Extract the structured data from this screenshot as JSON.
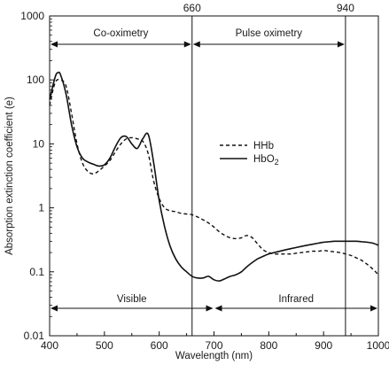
{
  "chart_data": {
    "type": "line",
    "title": "",
    "xlabel": "Wavelength (nm)",
    "ylabel": "Absorption extinction coefficient (e)",
    "xlim": [
      400,
      1000
    ],
    "ylim": [
      0.01,
      1000
    ],
    "yscale": "log",
    "xticks": [
      400,
      500,
      600,
      700,
      800,
      900,
      1000
    ],
    "xtick_labels": [
      "400",
      "500",
      "600",
      "700",
      "800",
      "900",
      "1000"
    ],
    "yticks": [
      0.01,
      0.1,
      1,
      10,
      100,
      1000
    ],
    "ytick_labels": [
      "0.01",
      "0.1",
      "1",
      "10",
      "100",
      "1000"
    ],
    "vlines": [
      {
        "x": 660,
        "label": "660"
      },
      {
        "x": 940,
        "label": "940"
      }
    ],
    "spans_top": [
      {
        "from": 400,
        "to": 660,
        "label": "Co-oximetry"
      },
      {
        "from": 660,
        "to": 940,
        "label": "Pulse oximetry"
      }
    ],
    "spans_bottom": [
      {
        "from": 400,
        "to": 700,
        "label": "Visible"
      },
      {
        "from": 700,
        "to": 1000,
        "label": "Infrared"
      }
    ],
    "legend": {
      "position": "center-right"
    },
    "series": [
      {
        "name": "HHb",
        "sub": "",
        "dash": "dashed",
        "color": "#111111",
        "x": [
          400,
          410,
          420,
          430,
          440,
          450,
          460,
          470,
          480,
          490,
          500,
          510,
          520,
          530,
          540,
          550,
          560,
          570,
          580,
          590,
          600,
          610,
          620,
          630,
          640,
          650,
          660,
          670,
          680,
          690,
          700,
          710,
          720,
          730,
          740,
          750,
          760,
          770,
          780,
          790,
          800,
          810,
          820,
          830,
          840,
          850,
          860,
          870,
          880,
          890,
          900,
          910,
          920,
          930,
          940,
          950,
          960,
          970,
          980,
          990,
          1000
        ],
        "y": [
          40,
          90,
          100,
          80,
          30,
          10,
          5,
          3.7,
          3.4,
          3.8,
          4.5,
          5.5,
          7.5,
          10,
          12,
          12.5,
          12,
          11,
          7,
          2.6,
          1.4,
          1.0,
          0.9,
          0.87,
          0.82,
          0.8,
          0.78,
          0.72,
          0.65,
          0.58,
          0.5,
          0.42,
          0.37,
          0.34,
          0.33,
          0.34,
          0.37,
          0.34,
          0.27,
          0.22,
          0.2,
          0.19,
          0.19,
          0.19,
          0.19,
          0.195,
          0.2,
          0.205,
          0.21,
          0.21,
          0.215,
          0.21,
          0.205,
          0.2,
          0.19,
          0.18,
          0.165,
          0.15,
          0.13,
          0.11,
          0.09
        ]
      },
      {
        "name": "HbO",
        "sub": "2",
        "dash": "solid",
        "color": "#111111",
        "x": [
          400,
          410,
          415,
          420,
          430,
          440,
          450,
          460,
          470,
          480,
          490,
          500,
          510,
          520,
          530,
          540,
          550,
          560,
          570,
          580,
          590,
          600,
          610,
          620,
          630,
          640,
          650,
          660,
          670,
          680,
          690,
          700,
          710,
          720,
          730,
          740,
          750,
          760,
          770,
          780,
          790,
          800,
          810,
          820,
          830,
          840,
          850,
          860,
          870,
          880,
          890,
          900,
          910,
          920,
          930,
          940,
          950,
          960,
          970,
          980,
          990,
          1000
        ],
        "y": [
          50,
          110,
          130,
          120,
          60,
          20,
          9,
          6,
          5.2,
          4.8,
          4.5,
          4.7,
          6,
          9,
          12.5,
          13,
          10,
          8.5,
          12,
          14,
          5,
          1.3,
          0.5,
          0.25,
          0.16,
          0.12,
          0.1,
          0.085,
          0.08,
          0.08,
          0.085,
          0.075,
          0.072,
          0.078,
          0.085,
          0.09,
          0.1,
          0.12,
          0.14,
          0.16,
          0.175,
          0.19,
          0.2,
          0.21,
          0.22,
          0.23,
          0.24,
          0.25,
          0.26,
          0.27,
          0.28,
          0.29,
          0.295,
          0.3,
          0.3,
          0.3,
          0.3,
          0.3,
          0.295,
          0.29,
          0.28,
          0.26
        ]
      }
    ]
  }
}
